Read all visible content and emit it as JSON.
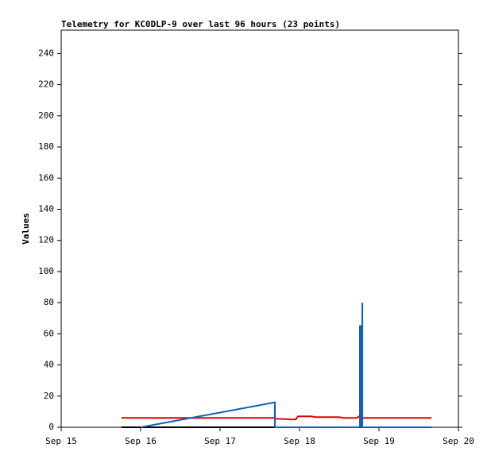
{
  "chart_data": {
    "type": "line",
    "title": "Telemetry for KC0DLP-9 over last 96 hours (23 points)",
    "ylabel": "Values",
    "xlim": [
      15,
      20
    ],
    "xticks": [
      {
        "value": 15,
        "label": "Sep 15"
      },
      {
        "value": 16,
        "label": "Sep 16"
      },
      {
        "value": 17,
        "label": "Sep 17"
      },
      {
        "value": 18,
        "label": "Sep 18"
      },
      {
        "value": 19,
        "label": "Sep 19"
      },
      {
        "value": 20,
        "label": "Sep 20"
      }
    ],
    "ylim": [
      0,
      255
    ],
    "yticks": [
      0,
      20,
      40,
      60,
      80,
      100,
      120,
      140,
      160,
      180,
      200,
      220,
      240
    ],
    "series": [
      {
        "color": "#000000",
        "x": [
          15.76,
          19.66
        ],
        "values": [
          0,
          0
        ]
      },
      {
        "color": "#e00000",
        "x": [
          15.76,
          17.68,
          17.7,
          17.95,
          17.98,
          18.15,
          18.2,
          18.5,
          18.55,
          18.72,
          18.75,
          18.8,
          19.66
        ],
        "values": [
          6,
          6,
          5.5,
          5,
          7,
          7,
          6.5,
          6.5,
          6,
          6,
          7,
          6,
          6
        ]
      },
      {
        "color": "#1060c0",
        "x": [
          16.0,
          17.69,
          17.69,
          18.76,
          18.76,
          18.78,
          18.78,
          18.79,
          18.79,
          19.66
        ],
        "values": [
          0,
          16,
          0,
          0,
          65,
          65,
          0,
          80,
          0,
          0
        ]
      }
    ]
  }
}
